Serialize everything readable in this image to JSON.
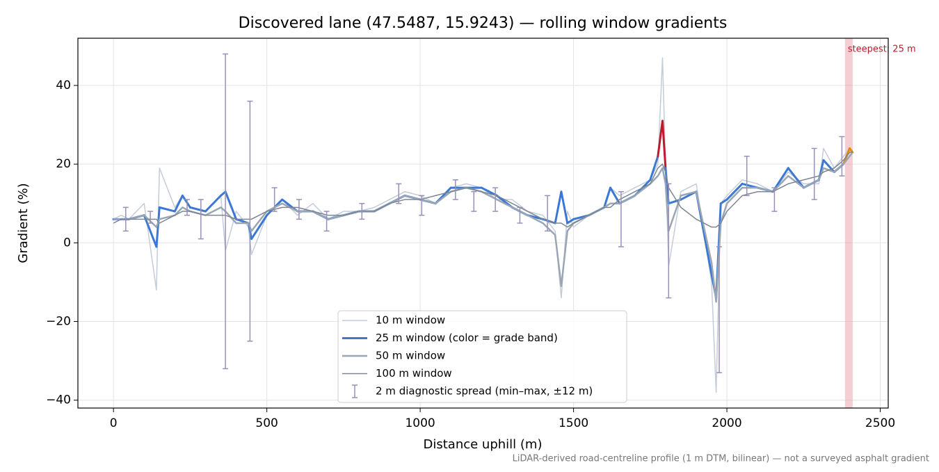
{
  "chart_data": {
    "type": "line",
    "title": "Discovered lane (47.5487, 15.9243) — rolling window gradients",
    "xlabel": "Distance uphill (m)",
    "ylabel": "Gradient (%)",
    "footnote": "LiDAR-derived road-centreline profile (1 m DTM, bilinear) — not a surveyed asphalt gradient",
    "xlim": [
      -116,
      2526
    ],
    "ylim": [
      -42,
      52
    ],
    "xticks": [
      0,
      500,
      1000,
      1500,
      2000,
      2500
    ],
    "yticks": [
      {
        "value": -40,
        "label": "−40"
      },
      {
        "value": -20,
        "label": "−20"
      },
      0,
      20,
      40
    ],
    "grid": true,
    "x": [
      0,
      25,
      50,
      100,
      140,
      150,
      200,
      225,
      250,
      300,
      350,
      365,
      400,
      440,
      450,
      500,
      550,
      600,
      650,
      700,
      750,
      800,
      850,
      900,
      950,
      1000,
      1050,
      1100,
      1150,
      1200,
      1250,
      1300,
      1350,
      1400,
      1440,
      1460,
      1480,
      1500,
      1550,
      1600,
      1620,
      1650,
      1700,
      1750,
      1775,
      1790,
      1800,
      1810,
      1850,
      1900,
      1950,
      1965,
      1980,
      2000,
      2050,
      2100,
      2150,
      2200,
      2250,
      2300,
      2315,
      2350,
      2380,
      2400,
      2410
    ],
    "series": [
      {
        "name": "10 m window",
        "color": "#c3ccd7",
        "width": 1.5,
        "values": [
          6,
          7,
          6,
          10,
          -12,
          19,
          9,
          12,
          9,
          8,
          12,
          -2,
          8,
          4,
          -3,
          7,
          11,
          7,
          10,
          6,
          8,
          8,
          9,
          11,
          13,
          12,
          10,
          14,
          15,
          14,
          11,
          11,
          8,
          7,
          3,
          -14,
          8,
          4,
          7,
          9,
          14,
          12,
          14,
          16,
          20,
          47,
          20,
          -6,
          13,
          15,
          -10,
          -38,
          10,
          12,
          16,
          15,
          13,
          18,
          15,
          15,
          24,
          19,
          22,
          24,
          23
        ]
      },
      {
        "name": "25 m window (color = grade band)",
        "color": "#3a78d4",
        "width": 3,
        "grade_bands": [
          {
            "from": 20,
            "color": "#e08a0e"
          },
          {
            "from": 25,
            "color": "#c0182c"
          }
        ],
        "values": [
          6,
          6,
          6,
          7,
          -1,
          9,
          8,
          12,
          9,
          8,
          12,
          13,
          6,
          5,
          1,
          7,
          11,
          8,
          8,
          6,
          7,
          8,
          8,
          10,
          12,
          11,
          10,
          14,
          14,
          14,
          12,
          9,
          7,
          6,
          5,
          13,
          5,
          6,
          7,
          9,
          14,
          10,
          12,
          16,
          22,
          31,
          19,
          10,
          11,
          13,
          -8,
          -14,
          10,
          11,
          15,
          14,
          13,
          19,
          14,
          16,
          21,
          18,
          20,
          24,
          23
        ]
      },
      {
        "name": "50 m window",
        "color": "#9aa6b4",
        "width": 2.5,
        "values": [
          6,
          6,
          6,
          7,
          4,
          6,
          7,
          9,
          8,
          7,
          9,
          8,
          5,
          5,
          3,
          8,
          10,
          8,
          8,
          6,
          7,
          8,
          8,
          10,
          12,
          11,
          10,
          13,
          14,
          13,
          11,
          9,
          7,
          5,
          2,
          -11,
          3,
          5,
          7,
          9,
          10,
          10,
          12,
          15,
          17,
          19,
          15,
          3,
          12,
          13,
          -5,
          -15,
          5,
          10,
          14,
          14,
          13,
          17,
          14,
          16,
          19,
          18,
          20,
          22,
          23
        ]
      },
      {
        "name": "100 m window",
        "color": "#7c8593",
        "width": 1.5,
        "values": [
          5,
          6,
          6,
          6,
          6,
          5,
          7,
          8,
          8,
          7,
          7,
          7,
          6,
          6,
          6,
          8,
          9,
          9,
          8,
          7,
          7,
          8,
          8,
          10,
          11,
          11,
          12,
          13,
          14,
          13,
          12,
          10,
          8,
          6,
          5,
          5,
          4,
          5,
          7,
          9,
          9,
          11,
          13,
          15,
          19,
          20,
          18,
          14,
          9,
          6,
          4,
          4,
          5,
          8,
          12,
          13,
          13,
          15,
          16,
          17,
          18,
          19,
          21,
          23,
          23
        ]
      }
    ],
    "spread": {
      "name": "2 m diagnostic spread (min–max, ±12 m)",
      "color": "#9a8fb8",
      "x": [
        40,
        120,
        240,
        285,
        365,
        445,
        525,
        605,
        695,
        810,
        930,
        1005,
        1115,
        1175,
        1245,
        1325,
        1415,
        1655,
        1810,
        1975,
        2065,
        2155,
        2285,
        2375
      ],
      "low": [
        3,
        5,
        7,
        1,
        -32,
        -25,
        8,
        6,
        3,
        6,
        10,
        7,
        11,
        8,
        8,
        5,
        3,
        -1,
        -14,
        -33,
        12,
        8,
        11,
        17
      ],
      "high": [
        9,
        8,
        11,
        11,
        48,
        36,
        14,
        11,
        8,
        10,
        15,
        12,
        16,
        13,
        14,
        9,
        12,
        13,
        15,
        -1,
        22,
        14,
        24,
        27
      ]
    },
    "highlight": {
      "xlim": [
        2385,
        2410
      ],
      "color": "#e8a0a8",
      "label": "steepest: 25 m",
      "label_color": "#c0182c"
    },
    "legend": "lower center"
  }
}
